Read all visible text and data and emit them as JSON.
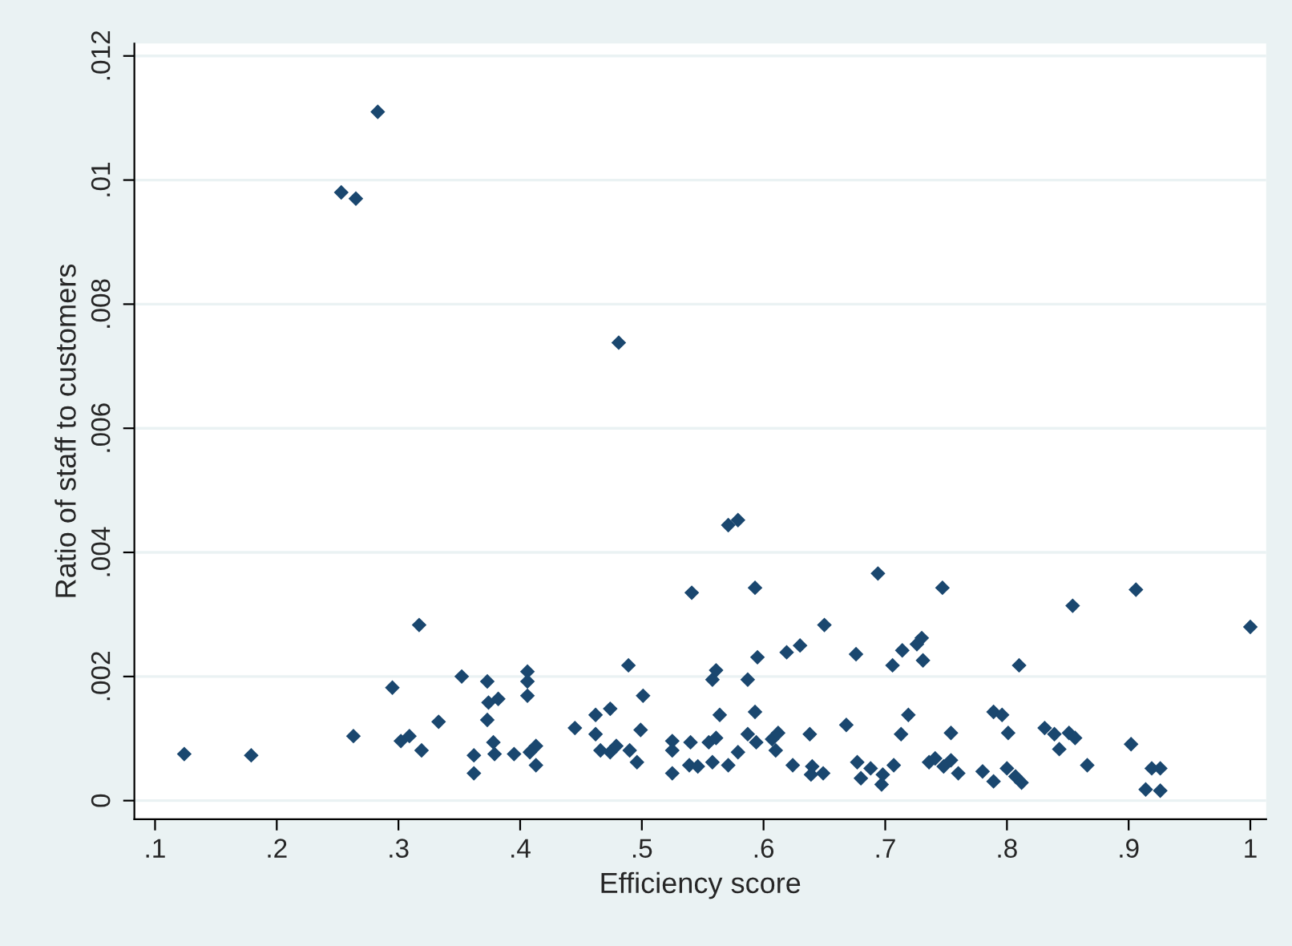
{
  "chart_data": {
    "type": "scatter",
    "xlabel": "Efficiency score",
    "ylabel": "Ratio of staff to customers",
    "xlim": [
      0.083,
      1.013
    ],
    "ylim": [
      -0.0003,
      0.0122
    ],
    "xticks": [
      {
        "value": 0.1,
        "label": ".1"
      },
      {
        "value": 0.2,
        "label": ".2"
      },
      {
        "value": 0.3,
        "label": ".3"
      },
      {
        "value": 0.4,
        "label": ".4"
      },
      {
        "value": 0.5,
        "label": ".5"
      },
      {
        "value": 0.6,
        "label": ".6"
      },
      {
        "value": 0.7,
        "label": ".7"
      },
      {
        "value": 0.8,
        "label": ".8"
      },
      {
        "value": 0.9,
        "label": ".9"
      },
      1
    ],
    "yticks": [
      0,
      {
        "value": 0.002,
        "label": ".002"
      },
      {
        "value": 0.004,
        "label": ".004"
      },
      {
        "value": 0.006,
        "label": ".006"
      },
      {
        "value": 0.008,
        "label": ".008"
      },
      {
        "value": 0.01,
        "label": ".01"
      },
      {
        "value": 0.012,
        "label": ".012"
      }
    ],
    "grid": "y",
    "marker": "diamond",
    "legend": false,
    "series": [
      {
        "color": "#1a476f",
        "x": [
          0.124,
          0.179,
          0.253,
          0.265,
          0.283,
          0.263,
          0.295,
          0.302,
          0.309,
          0.317,
          0.319,
          0.333,
          0.352,
          0.373,
          0.374,
          0.382,
          0.373,
          0.378,
          0.379,
          0.362,
          0.362,
          0.395,
          0.406,
          0.406,
          0.406,
          0.413,
          0.408,
          0.413,
          0.445,
          0.462,
          0.462,
          0.466,
          0.474,
          0.479,
          0.474,
          0.481,
          0.489,
          0.49,
          0.501,
          0.499,
          0.496,
          0.525,
          0.525,
          0.54,
          0.539,
          0.546,
          0.525,
          0.541,
          0.571,
          0.579,
          0.593,
          0.694,
          0.747,
          0.854,
          0.906,
          1.0,
          0.65,
          0.595,
          0.619,
          0.63,
          0.676,
          0.706,
          0.714,
          0.726,
          0.73,
          0.731,
          0.81,
          0.558,
          0.561,
          0.587,
          0.564,
          0.593,
          0.555,
          0.561,
          0.558,
          0.571,
          0.579,
          0.587,
          0.594,
          0.607,
          0.612,
          0.61,
          0.624,
          0.638,
          0.64,
          0.639,
          0.649,
          0.668,
          0.677,
          0.68,
          0.688,
          0.697,
          0.698,
          0.707,
          0.713,
          0.719,
          0.736,
          0.741,
          0.748,
          0.754,
          0.76,
          0.754,
          0.78,
          0.789,
          0.789,
          0.796,
          0.801,
          0.8,
          0.807,
          0.812,
          0.831,
          0.839,
          0.843,
          0.851,
          0.856,
          0.866,
          0.902,
          0.914,
          0.919,
          0.926,
          0.926
        ],
        "values": [
          0.00075,
          0.00073,
          0.0098,
          0.0097,
          0.0111,
          0.00104,
          0.00182,
          0.00096,
          0.00104,
          0.00283,
          0.00081,
          0.00127,
          0.002,
          0.00192,
          0.00158,
          0.00164,
          0.0013,
          0.00094,
          0.00075,
          0.00073,
          0.00044,
          0.00075,
          0.00208,
          0.00192,
          0.00169,
          0.00088,
          0.00078,
          0.00057,
          0.00117,
          0.00138,
          0.00107,
          0.00081,
          0.00078,
          0.00088,
          0.00148,
          0.00738,
          0.00218,
          0.00081,
          0.00169,
          0.00114,
          0.00062,
          0.00096,
          0.00081,
          0.00094,
          0.00057,
          0.00055,
          0.00044,
          0.00335,
          0.00444,
          0.00452,
          0.00343,
          0.00366,
          0.00343,
          0.00314,
          0.0034,
          0.0028,
          0.00283,
          0.00231,
          0.00239,
          0.0025,
          0.00236,
          0.00218,
          0.00242,
          0.00252,
          0.00262,
          0.00226,
          0.00218,
          0.00195,
          0.0021,
          0.00195,
          0.00138,
          0.00143,
          0.00094,
          0.00101,
          0.00062,
          0.00057,
          0.00078,
          0.00107,
          0.00094,
          0.00099,
          0.00109,
          0.00081,
          0.00057,
          0.00107,
          0.00055,
          0.00042,
          0.00044,
          0.00122,
          0.00062,
          0.00036,
          0.00052,
          0.00026,
          0.00042,
          0.00057,
          0.00107,
          0.00138,
          0.00062,
          0.00068,
          0.00055,
          0.00065,
          0.00044,
          0.00109,
          0.00047,
          0.00031,
          0.00143,
          0.00138,
          0.00109,
          0.00052,
          0.00039,
          0.00029,
          0.00117,
          0.00107,
          0.00083,
          0.00109,
          0.00101,
          0.00057,
          0.00091,
          0.00018,
          0.00052,
          0.00052,
          0.00016
        ]
      }
    ]
  }
}
